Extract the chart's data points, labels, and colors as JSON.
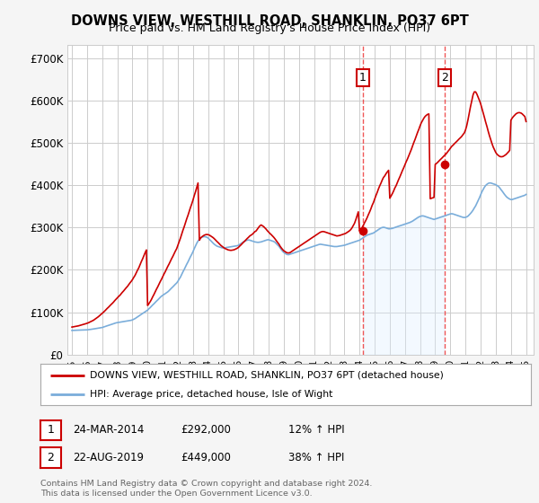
{
  "title": "DOWNS VIEW, WESTHILL ROAD, SHANKLIN, PO37 6PT",
  "subtitle": "Price paid vs. HM Land Registry's House Price Index (HPI)",
  "legend_line1": "DOWNS VIEW, WESTHILL ROAD, SHANKLIN, PO37 6PT (detached house)",
  "legend_line2": "HPI: Average price, detached house, Isle of Wight",
  "annotation1_label": "1",
  "annotation1_date": "24-MAR-2014",
  "annotation1_price": "£292,000",
  "annotation1_hpi": "12% ↑ HPI",
  "annotation2_label": "2",
  "annotation2_date": "22-AUG-2019",
  "annotation2_price": "£449,000",
  "annotation2_hpi": "38% ↑ HPI",
  "footnote": "Contains HM Land Registry data © Crown copyright and database right 2024.\nThis data is licensed under the Open Government Licence v3.0.",
  "sale_color": "#cc0000",
  "hpi_color": "#7aadda",
  "hpi_fill_color": "#ddeeff",
  "vline_color": "#ee4444",
  "background_color": "#f5f5f5",
  "plot_bg_color": "#ffffff",
  "grid_color": "#cccccc",
  "ylim": [
    0,
    730000
  ],
  "yticks": [
    0,
    100000,
    200000,
    300000,
    400000,
    500000,
    600000,
    700000
  ],
  "ytick_labels": [
    "£0",
    "£100K",
    "£200K",
    "£300K",
    "£400K",
    "£500K",
    "£600K",
    "£700K"
  ],
  "sale1_year": 2014.22,
  "sale1_price": 292000,
  "sale2_year": 2019.65,
  "sale2_price": 449000,
  "hpi_x": [
    1995.0,
    1995.08,
    1995.17,
    1995.25,
    1995.33,
    1995.42,
    1995.5,
    1995.58,
    1995.67,
    1995.75,
    1995.83,
    1995.92,
    1996.0,
    1996.08,
    1996.17,
    1996.25,
    1996.33,
    1996.42,
    1996.5,
    1996.58,
    1996.67,
    1996.75,
    1996.83,
    1996.92,
    1997.0,
    1997.08,
    1997.17,
    1997.25,
    1997.33,
    1997.42,
    1997.5,
    1997.58,
    1997.67,
    1997.75,
    1997.83,
    1997.92,
    1998.0,
    1998.08,
    1998.17,
    1998.25,
    1998.33,
    1998.42,
    1998.5,
    1998.58,
    1998.67,
    1998.75,
    1998.83,
    1998.92,
    1999.0,
    1999.08,
    1999.17,
    1999.25,
    1999.33,
    1999.42,
    1999.5,
    1999.58,
    1999.67,
    1999.75,
    1999.83,
    1999.92,
    2000.0,
    2000.08,
    2000.17,
    2000.25,
    2000.33,
    2000.42,
    2000.5,
    2000.58,
    2000.67,
    2000.75,
    2000.83,
    2000.92,
    2001.0,
    2001.08,
    2001.17,
    2001.25,
    2001.33,
    2001.42,
    2001.5,
    2001.58,
    2001.67,
    2001.75,
    2001.83,
    2001.92,
    2002.0,
    2002.08,
    2002.17,
    2002.25,
    2002.33,
    2002.42,
    2002.5,
    2002.58,
    2002.67,
    2002.75,
    2002.83,
    2002.92,
    2003.0,
    2003.08,
    2003.17,
    2003.25,
    2003.33,
    2003.42,
    2003.5,
    2003.58,
    2003.67,
    2003.75,
    2003.83,
    2003.92,
    2004.0,
    2004.08,
    2004.17,
    2004.25,
    2004.33,
    2004.42,
    2004.5,
    2004.58,
    2004.67,
    2004.75,
    2004.83,
    2004.92,
    2005.0,
    2005.08,
    2005.17,
    2005.25,
    2005.33,
    2005.42,
    2005.5,
    2005.58,
    2005.67,
    2005.75,
    2005.83,
    2005.92,
    2006.0,
    2006.08,
    2006.17,
    2006.25,
    2006.33,
    2006.42,
    2006.5,
    2006.58,
    2006.67,
    2006.75,
    2006.83,
    2006.92,
    2007.0,
    2007.08,
    2007.17,
    2007.25,
    2007.33,
    2007.42,
    2007.5,
    2007.58,
    2007.67,
    2007.75,
    2007.83,
    2007.92,
    2008.0,
    2008.08,
    2008.17,
    2008.25,
    2008.33,
    2008.42,
    2008.5,
    2008.58,
    2008.67,
    2008.75,
    2008.83,
    2008.92,
    2009.0,
    2009.08,
    2009.17,
    2009.25,
    2009.33,
    2009.42,
    2009.5,
    2009.58,
    2009.67,
    2009.75,
    2009.83,
    2009.92,
    2010.0,
    2010.08,
    2010.17,
    2010.25,
    2010.33,
    2010.42,
    2010.5,
    2010.58,
    2010.67,
    2010.75,
    2010.83,
    2010.92,
    2011.0,
    2011.08,
    2011.17,
    2011.25,
    2011.33,
    2011.42,
    2011.5,
    2011.58,
    2011.67,
    2011.75,
    2011.83,
    2011.92,
    2012.0,
    2012.08,
    2012.17,
    2012.25,
    2012.33,
    2012.42,
    2012.5,
    2012.58,
    2012.67,
    2012.75,
    2012.83,
    2012.92,
    2013.0,
    2013.08,
    2013.17,
    2013.25,
    2013.33,
    2013.42,
    2013.5,
    2013.58,
    2013.67,
    2013.75,
    2013.83,
    2013.92,
    2014.0,
    2014.08,
    2014.17,
    2014.25,
    2014.33,
    2014.42,
    2014.5,
    2014.58,
    2014.67,
    2014.75,
    2014.83,
    2014.92,
    2015.0,
    2015.08,
    2015.17,
    2015.25,
    2015.33,
    2015.42,
    2015.5,
    2015.58,
    2015.67,
    2015.75,
    2015.83,
    2015.92,
    2016.0,
    2016.08,
    2016.17,
    2016.25,
    2016.33,
    2016.42,
    2016.5,
    2016.58,
    2016.67,
    2016.75,
    2016.83,
    2016.92,
    2017.0,
    2017.08,
    2017.17,
    2017.25,
    2017.33,
    2017.42,
    2017.5,
    2017.58,
    2017.67,
    2017.75,
    2017.83,
    2017.92,
    2018.0,
    2018.08,
    2018.17,
    2018.25,
    2018.33,
    2018.42,
    2018.5,
    2018.58,
    2018.67,
    2018.75,
    2018.83,
    2018.92,
    2019.0,
    2019.08,
    2019.17,
    2019.25,
    2019.33,
    2019.42,
    2019.5,
    2019.58,
    2019.67,
    2019.75,
    2019.83,
    2019.92,
    2020.0,
    2020.08,
    2020.17,
    2020.25,
    2020.33,
    2020.42,
    2020.5,
    2020.58,
    2020.67,
    2020.75,
    2020.83,
    2020.92,
    2021.0,
    2021.08,
    2021.17,
    2021.25,
    2021.33,
    2021.42,
    2021.5,
    2021.58,
    2021.67,
    2021.75,
    2021.83,
    2021.92,
    2022.0,
    2022.08,
    2022.17,
    2022.25,
    2022.33,
    2022.42,
    2022.5,
    2022.58,
    2022.67,
    2022.75,
    2022.83,
    2022.92,
    2023.0,
    2023.08,
    2023.17,
    2023.25,
    2023.33,
    2023.42,
    2023.5,
    2023.58,
    2023.67,
    2023.75,
    2023.83,
    2023.92,
    2024.0,
    2024.08,
    2024.17,
    2024.25,
    2024.33,
    2024.42,
    2024.5,
    2024.58,
    2024.67,
    2024.75,
    2024.83,
    2024.92,
    2025.0
  ],
  "hpi_y": [
    57000,
    57200,
    57400,
    57500,
    57600,
    57700,
    57800,
    57900,
    58000,
    58100,
    58200,
    58300,
    58500,
    58800,
    59200,
    59600,
    60000,
    60500,
    61000,
    61500,
    62000,
    62500,
    63000,
    63500,
    64000,
    65000,
    66000,
    67000,
    68000,
    69000,
    70000,
    71000,
    72000,
    73000,
    74000,
    75000,
    75500,
    76000,
    76500,
    77000,
    77500,
    78000,
    78500,
    79000,
    79500,
    80000,
    80500,
    81000,
    82000,
    83500,
    85000,
    87000,
    89000,
    91000,
    93000,
    95000,
    97000,
    99000,
    101000,
    103000,
    105000,
    108000,
    111000,
    114000,
    117000,
    120000,
    123000,
    126000,
    129000,
    132000,
    135000,
    138000,
    140000,
    142000,
    144000,
    146000,
    148000,
    151000,
    154000,
    157000,
    160000,
    163000,
    166000,
    169000,
    173000,
    178000,
    183000,
    189000,
    195000,
    201000,
    207000,
    213000,
    219000,
    225000,
    231000,
    237000,
    243000,
    250000,
    257000,
    263000,
    268000,
    272000,
    275000,
    277000,
    278000,
    278500,
    278000,
    277000,
    275000,
    272000,
    269000,
    266000,
    263000,
    260000,
    258000,
    256000,
    255000,
    254000,
    253000,
    252000,
    252000,
    252000,
    252500,
    253000,
    253500,
    254000,
    254500,
    255000,
    255500,
    256000,
    256500,
    257000,
    258000,
    260000,
    262000,
    264000,
    266000,
    268000,
    269000,
    270000,
    270500,
    270000,
    269000,
    268000,
    267000,
    266000,
    265500,
    265000,
    265000,
    265500,
    266000,
    267000,
    268000,
    269000,
    270000,
    271000,
    271000,
    270000,
    269000,
    268000,
    267000,
    265000,
    262000,
    259000,
    256000,
    252000,
    248000,
    244000,
    241000,
    239000,
    237000,
    236000,
    236000,
    237000,
    238000,
    239000,
    240000,
    241000,
    242000,
    243000,
    244000,
    245000,
    246000,
    247000,
    248000,
    249000,
    250000,
    251000,
    252000,
    253000,
    254000,
    255000,
    256000,
    257000,
    258000,
    259000,
    260000,
    260500,
    260000,
    259500,
    259000,
    258500,
    258000,
    257500,
    257000,
    256500,
    256000,
    255500,
    255000,
    255000,
    255000,
    255500,
    256000,
    256500,
    257000,
    257500,
    258000,
    259000,
    260000,
    261000,
    262000,
    263000,
    264000,
    265000,
    266000,
    267000,
    268000,
    269000,
    270000,
    272000,
    274000,
    276000,
    278000,
    280000,
    282000,
    283000,
    284000,
    285000,
    286000,
    287000,
    289000,
    291000,
    293000,
    295000,
    297000,
    299000,
    300000,
    300500,
    300000,
    299000,
    298000,
    297000,
    297000,
    297500,
    298000,
    299000,
    300000,
    301000,
    302000,
    303000,
    304000,
    305000,
    306000,
    307000,
    308000,
    309000,
    310000,
    311000,
    312000,
    313500,
    315000,
    317000,
    319000,
    321000,
    323000,
    325000,
    326000,
    327000,
    327500,
    327000,
    326000,
    325000,
    324000,
    323000,
    322000,
    321000,
    320000,
    319000,
    320000,
    321000,
    322000,
    323000,
    324000,
    325000,
    326000,
    327000,
    328000,
    329000,
    330000,
    331000,
    332000,
    332500,
    332000,
    331000,
    330000,
    329000,
    328000,
    327000,
    326000,
    325000,
    324000,
    323500,
    324000,
    325000,
    327000,
    330000,
    333000,
    337000,
    341000,
    346000,
    351000,
    357000,
    363000,
    370000,
    377000,
    384000,
    390000,
    395000,
    399000,
    402000,
    404000,
    405000,
    405000,
    404000,
    403000,
    402000,
    401000,
    399000,
    397000,
    394000,
    390000,
    386000,
    382000,
    378000,
    374000,
    371000,
    369000,
    367000,
    366000,
    366000,
    367000,
    368000,
    369000,
    370000,
    371000,
    372000,
    373000,
    374000,
    375000,
    376000,
    378000
  ],
  "sale_x": [
    1995.0,
    1995.08,
    1995.17,
    1995.25,
    1995.33,
    1995.42,
    1995.5,
    1995.58,
    1995.67,
    1995.75,
    1995.83,
    1995.92,
    1996.0,
    1996.08,
    1996.17,
    1996.25,
    1996.33,
    1996.42,
    1996.5,
    1996.58,
    1996.67,
    1996.75,
    1996.83,
    1996.92,
    1997.0,
    1997.08,
    1997.17,
    1997.25,
    1997.33,
    1997.42,
    1997.5,
    1997.58,
    1997.67,
    1997.75,
    1997.83,
    1997.92,
    1998.0,
    1998.08,
    1998.17,
    1998.25,
    1998.33,
    1998.42,
    1998.5,
    1998.58,
    1998.67,
    1998.75,
    1998.83,
    1998.92,
    1999.0,
    1999.08,
    1999.17,
    1999.25,
    1999.33,
    1999.42,
    1999.5,
    1999.58,
    1999.67,
    1999.75,
    1999.83,
    1999.92,
    2000.0,
    2000.08,
    2000.17,
    2000.25,
    2000.33,
    2000.42,
    2000.5,
    2000.58,
    2000.67,
    2000.75,
    2000.83,
    2000.92,
    2001.0,
    2001.08,
    2001.17,
    2001.25,
    2001.33,
    2001.42,
    2001.5,
    2001.58,
    2001.67,
    2001.75,
    2001.83,
    2001.92,
    2002.0,
    2002.08,
    2002.17,
    2002.25,
    2002.33,
    2002.42,
    2002.5,
    2002.58,
    2002.67,
    2002.75,
    2002.83,
    2002.92,
    2003.0,
    2003.08,
    2003.17,
    2003.25,
    2003.33,
    2003.42,
    2003.5,
    2003.58,
    2003.67,
    2003.75,
    2003.83,
    2003.92,
    2004.0,
    2004.08,
    2004.17,
    2004.25,
    2004.33,
    2004.42,
    2004.5,
    2004.58,
    2004.67,
    2004.75,
    2004.83,
    2004.92,
    2005.0,
    2005.08,
    2005.17,
    2005.25,
    2005.33,
    2005.42,
    2005.5,
    2005.58,
    2005.67,
    2005.75,
    2005.83,
    2005.92,
    2006.0,
    2006.08,
    2006.17,
    2006.25,
    2006.33,
    2006.42,
    2006.5,
    2006.58,
    2006.67,
    2006.75,
    2006.83,
    2006.92,
    2007.0,
    2007.08,
    2007.17,
    2007.25,
    2007.33,
    2007.42,
    2007.5,
    2007.58,
    2007.67,
    2007.75,
    2007.83,
    2007.92,
    2008.0,
    2008.08,
    2008.17,
    2008.25,
    2008.33,
    2008.42,
    2008.5,
    2008.58,
    2008.67,
    2008.75,
    2008.83,
    2008.92,
    2009.0,
    2009.08,
    2009.17,
    2009.25,
    2009.33,
    2009.42,
    2009.5,
    2009.58,
    2009.67,
    2009.75,
    2009.83,
    2009.92,
    2010.0,
    2010.08,
    2010.17,
    2010.25,
    2010.33,
    2010.42,
    2010.5,
    2010.58,
    2010.67,
    2010.75,
    2010.83,
    2010.92,
    2011.0,
    2011.08,
    2011.17,
    2011.25,
    2011.33,
    2011.42,
    2011.5,
    2011.58,
    2011.67,
    2011.75,
    2011.83,
    2011.92,
    2012.0,
    2012.08,
    2012.17,
    2012.25,
    2012.33,
    2012.42,
    2012.5,
    2012.58,
    2012.67,
    2012.75,
    2012.83,
    2012.92,
    2013.0,
    2013.08,
    2013.17,
    2013.25,
    2013.33,
    2013.42,
    2013.5,
    2013.58,
    2013.67,
    2013.75,
    2013.83,
    2013.92,
    2014.0,
    2014.08,
    2014.17,
    2014.25,
    2014.33,
    2014.42,
    2014.5,
    2014.58,
    2014.67,
    2014.75,
    2014.83,
    2014.92,
    2015.0,
    2015.08,
    2015.17,
    2015.25,
    2015.33,
    2015.42,
    2015.5,
    2015.58,
    2015.67,
    2015.75,
    2015.83,
    2015.92,
    2016.0,
    2016.08,
    2016.17,
    2016.25,
    2016.33,
    2016.42,
    2016.5,
    2016.58,
    2016.67,
    2016.75,
    2016.83,
    2016.92,
    2017.0,
    2017.08,
    2017.17,
    2017.25,
    2017.33,
    2017.42,
    2017.5,
    2017.58,
    2017.67,
    2017.75,
    2017.83,
    2017.92,
    2018.0,
    2018.08,
    2018.17,
    2018.25,
    2018.33,
    2018.42,
    2018.5,
    2018.58,
    2018.67,
    2018.75,
    2018.83,
    2018.92,
    2019.0,
    2019.08,
    2019.17,
    2019.25,
    2019.33,
    2019.42,
    2019.5,
    2019.58,
    2019.67,
    2019.75,
    2019.83,
    2019.92,
    2020.0,
    2020.08,
    2020.17,
    2020.25,
    2020.33,
    2020.42,
    2020.5,
    2020.58,
    2020.67,
    2020.75,
    2020.83,
    2020.92,
    2021.0,
    2021.08,
    2021.17,
    2021.25,
    2021.33,
    2021.42,
    2021.5,
    2021.58,
    2021.67,
    2021.75,
    2021.83,
    2021.92,
    2022.0,
    2022.08,
    2022.17,
    2022.25,
    2022.33,
    2022.42,
    2022.5,
    2022.58,
    2022.67,
    2022.75,
    2022.83,
    2022.92,
    2023.0,
    2023.08,
    2023.17,
    2023.25,
    2023.33,
    2023.42,
    2023.5,
    2023.58,
    2023.67,
    2023.75,
    2023.83,
    2023.92,
    2024.0,
    2024.08,
    2024.17,
    2024.25,
    2024.33,
    2024.42,
    2024.5,
    2024.58,
    2024.67,
    2024.75,
    2024.83,
    2024.92,
    2025.0
  ],
  "sale_y": [
    65000,
    65500,
    66000,
    66500,
    67000,
    67800,
    68600,
    69400,
    70200,
    71000,
    72000,
    73000,
    74000,
    75000,
    76500,
    78000,
    79500,
    81000,
    83000,
    85000,
    87000,
    89500,
    92000,
    95000,
    97000,
    100000,
    103000,
    106000,
    109000,
    112000,
    115000,
    118000,
    121000,
    124000,
    127500,
    131000,
    134000,
    137000,
    140000,
    143500,
    147000,
    150500,
    154000,
    157500,
    161000,
    165000,
    169000,
    173000,
    177000,
    182000,
    187000,
    193000,
    199000,
    205000,
    212000,
    219000,
    226000,
    233000,
    240000,
    247000,
    116000,
    120000,
    125000,
    130000,
    136000,
    142000,
    148000,
    154000,
    160000,
    166000,
    172000,
    178000,
    184000,
    190000,
    196000,
    202000,
    208000,
    214000,
    220000,
    226000,
    232000,
    238000,
    244000,
    250000,
    258000,
    266000,
    275000,
    284000,
    293000,
    302000,
    311000,
    320000,
    329000,
    338000,
    347000,
    356000,
    365000,
    375000,
    385000,
    395000,
    405000,
    270000,
    275000,
    278000,
    280000,
    282000,
    283000,
    283500,
    283000,
    282000,
    280000,
    278000,
    276000,
    273000,
    270000,
    267000,
    264000,
    261000,
    258000,
    255500,
    253000,
    251000,
    249500,
    248000,
    247000,
    246500,
    246000,
    246500,
    247000,
    248000,
    249500,
    251000,
    253000,
    256000,
    259000,
    262000,
    265000,
    268000,
    271000,
    274000,
    277000,
    280000,
    282000,
    284000,
    287000,
    290000,
    292000,
    296000,
    300000,
    304000,
    306000,
    304000,
    302000,
    299000,
    296000,
    292000,
    289000,
    286000,
    283000,
    280000,
    277000,
    273000,
    269000,
    265000,
    261000,
    256000,
    252000,
    248000,
    245000,
    243000,
    241000,
    240000,
    240000,
    241000,
    243000,
    245000,
    247000,
    249000,
    251000,
    253000,
    255000,
    257000,
    259000,
    261000,
    263000,
    265000,
    267000,
    269000,
    271000,
    273000,
    275000,
    277000,
    279000,
    281000,
    283000,
    285000,
    287000,
    289000,
    290000,
    290500,
    290000,
    289000,
    288000,
    287000,
    286000,
    285000,
    284000,
    283000,
    282000,
    281000,
    280000,
    280500,
    281000,
    282000,
    283000,
    284000,
    285000,
    286000,
    288000,
    290000,
    292000,
    295000,
    299000,
    304000,
    310000,
    318000,
    327000,
    337000,
    292000,
    296000,
    300000,
    305000,
    311000,
    317000,
    323000,
    330000,
    337000,
    344000,
    352000,
    359000,
    367000,
    375000,
    383000,
    391000,
    398000,
    405000,
    412000,
    418000,
    422000,
    427000,
    431000,
    435000,
    369000,
    374000,
    380000,
    386000,
    393000,
    399000,
    406000,
    413000,
    420000,
    427000,
    434000,
    441000,
    448000,
    455000,
    462000,
    469000,
    476000,
    484000,
    492000,
    500000,
    508000,
    516000,
    524000,
    532000,
    540000,
    547000,
    553000,
    558000,
    562000,
    565000,
    567000,
    568000,
    368000,
    369000,
    370000,
    371000,
    449000,
    451000,
    454000,
    457000,
    460000,
    463000,
    466000,
    469000,
    472000,
    475000,
    479000,
    483000,
    487000,
    491000,
    494000,
    497000,
    500000,
    503000,
    506000,
    509000,
    512000,
    515000,
    519000,
    523000,
    530000,
    540000,
    555000,
    570000,
    585000,
    600000,
    613000,
    620000,
    620000,
    615000,
    608000,
    600000,
    592000,
    582000,
    571000,
    560000,
    549000,
    538000,
    527000,
    517000,
    507000,
    498000,
    490000,
    483000,
    477000,
    473000,
    470000,
    468000,
    467000,
    467000,
    468000,
    470000,
    472000,
    475000,
    478000,
    482000,
    553000,
    558000,
    562000,
    565000,
    568000,
    570000,
    571000,
    571000,
    570000,
    568000,
    565000,
    562000,
    550000
  ]
}
